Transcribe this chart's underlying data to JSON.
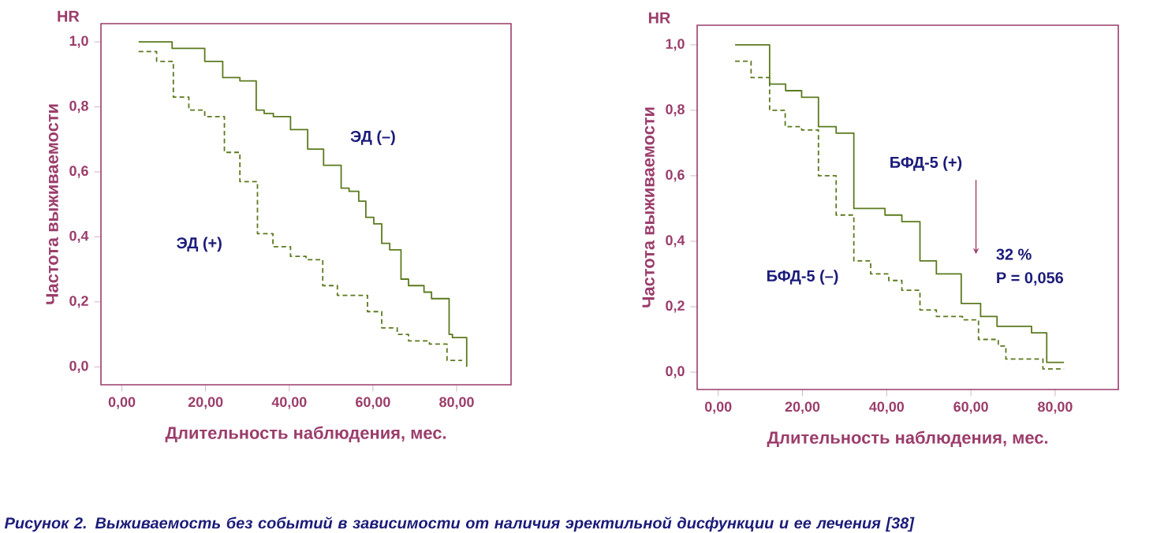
{
  "chart_data": [
    {
      "type": "step",
      "xlabel": "Длительность наблюдения, мес.",
      "ylabel": "Частота выживаемости",
      "xlim": [
        -5,
        93
      ],
      "ylim": [
        -0.055,
        1.056
      ],
      "xticks": [
        {
          "value": 0,
          "label": "0,00"
        },
        {
          "value": 20,
          "label": "20,00"
        },
        {
          "value": 40,
          "label": "40,00"
        },
        {
          "value": 60,
          "label": "60,00"
        },
        {
          "value": 80,
          "label": "80,00"
        }
      ],
      "yticks": [
        {
          "value": 0,
          "label": "0,0"
        },
        {
          "value": 0.2,
          "label": "0,2"
        },
        {
          "value": 0.4,
          "label": "0,4"
        },
        {
          "value": 0.6,
          "label": "0,6"
        },
        {
          "value": 0.8,
          "label": "0,8"
        },
        {
          "value": 1,
          "label": "1,0"
        }
      ],
      "series": [
        {
          "name": "ЭД (–)",
          "color": "#5b7a1e",
          "line_style": "solid",
          "x": [
            4,
            12,
            19.8,
            24.1,
            28.2,
            32.1,
            34,
            36.2,
            40.3,
            44.4,
            48.2,
            52.4,
            54.3,
            56.6,
            58.3,
            60.2,
            62.1,
            64,
            66.7,
            68.5,
            72.2,
            74,
            78.2,
            79,
            82.4
          ],
          "values": [
            1.0,
            0.98,
            0.94,
            0.89,
            0.88,
            0.79,
            0.78,
            0.77,
            0.73,
            0.67,
            0.62,
            0.55,
            0.54,
            0.51,
            0.46,
            0.44,
            0.38,
            0.36,
            0.27,
            0.25,
            0.23,
            0.21,
            0.1,
            0.09,
            0.0
          ]
        },
        {
          "name": "ЭД (+)",
          "color": "#5b7a1e",
          "line_style": "dashed",
          "x": [
            4,
            8.3,
            12.3,
            16,
            19.8,
            24.5,
            28.2,
            32.4,
            36.1,
            40.3,
            44,
            48,
            51.5,
            58.7,
            62.1,
            65.8,
            68.5,
            73.5,
            77.7,
            81.3
          ],
          "values": [
            0.97,
            0.94,
            0.83,
            0.79,
            0.77,
            0.66,
            0.57,
            0.41,
            0.37,
            0.34,
            0.33,
            0.25,
            0.22,
            0.17,
            0.12,
            0.1,
            0.08,
            0.07,
            0.02,
            0.02
          ]
        }
      ],
      "annotations": [
        "HR",
        "Рисунок 2. Выживаемость без событий в зависимости от наличия эректильной дисфункции и ее лечения [38]"
      ]
    },
    {
      "type": "step",
      "xlabel": "Длительность наблюдения, мес.",
      "ylabel": "Частота выживаемости",
      "xlim": [
        -5,
        95
      ],
      "ylim": [
        -0.053,
        1.06
      ],
      "xticks": [
        {
          "value": 0,
          "label": "0,00"
        },
        {
          "value": 20,
          "label": "20,00"
        },
        {
          "value": 40,
          "label": "40,00"
        },
        {
          "value": 60,
          "label": "60,00"
        },
        {
          "value": 80,
          "label": "80,00"
        }
      ],
      "yticks": [
        {
          "value": 0,
          "label": "0,0"
        },
        {
          "value": 0.2,
          "label": "0,2"
        },
        {
          "value": 0.4,
          "label": "0,4"
        },
        {
          "value": 0.6,
          "label": "0,6"
        },
        {
          "value": 0.8,
          "label": "0,8"
        },
        {
          "value": 1,
          "label": "1,0"
        }
      ],
      "series": [
        {
          "name": "БФД-5 (+)",
          "color": "#5b7a1e",
          "line_style": "solid",
          "x": [
            4,
            12.2,
            16,
            19.8,
            23.8,
            28,
            32.2,
            39.6,
            43.6,
            47.9,
            51.8,
            57.7,
            62.3,
            66.2,
            74.4,
            78,
            82.1
          ],
          "values": [
            1.0,
            0.88,
            0.86,
            0.84,
            0.75,
            0.73,
            0.5,
            0.48,
            0.46,
            0.34,
            0.3,
            0.21,
            0.17,
            0.14,
            0.12,
            0.03,
            0.03
          ]
        },
        {
          "name": "БФД-5 (–)",
          "color": "#5b7a1e",
          "line_style": "dashed",
          "x": [
            4,
            7.8,
            12.2,
            15.9,
            19.8,
            23.8,
            28,
            32.2,
            36.2,
            40.5,
            43.6,
            47.9,
            51.8,
            58,
            61.8,
            66.5,
            68.3,
            77.1,
            82.1
          ],
          "values": [
            0.95,
            0.9,
            0.8,
            0.75,
            0.74,
            0.6,
            0.48,
            0.34,
            0.3,
            0.28,
            0.25,
            0.19,
            0.17,
            0.16,
            0.1,
            0.08,
            0.04,
            0.01,
            0.01
          ]
        }
      ],
      "annotations": [
        "HR",
        "32 %",
        "P = 0,056"
      ]
    }
  ]
}
